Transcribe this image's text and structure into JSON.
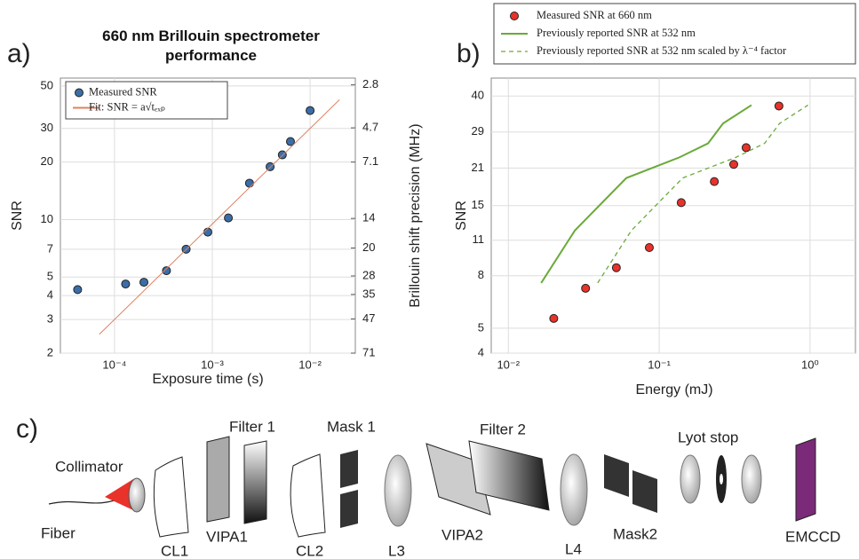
{
  "chart_data": [
    {
      "type": "scatter",
      "panel_label": "a)",
      "title": "660 nm Brillouin spectrometer performance",
      "x_label": "Exposure time  (s)",
      "y_label": "SNR",
      "y2_label": "Brillouin shift precision (MHz)",
      "xlog": true,
      "ylog": true,
      "y2log": true,
      "grid": true,
      "legend": "upper left",
      "xlim": [
        2.8e-05,
        0.029
      ],
      "ylim": [
        2,
        55
      ],
      "y2lim": [
        71,
        2.58
      ],
      "xticks": [
        {
          "value": 0.0001,
          "label": "10⁻⁴"
        },
        {
          "value": 0.001,
          "label": "10⁻³"
        },
        {
          "value": 0.01,
          "label": "10⁻²"
        }
      ],
      "yticks": [
        2,
        3,
        4,
        5,
        7,
        10,
        20,
        30,
        50
      ],
      "y2ticks": [
        2.8,
        4.7,
        7.1,
        14,
        20,
        28,
        35,
        47,
        71
      ],
      "series": [
        {
          "name": "Measured SNR",
          "type": "scatter",
          "color": "#3b6ea8",
          "x": [
            4.2e-05,
            0.00013,
            0.0002,
            0.00034,
            0.00054,
            0.0009,
            0.00146,
            0.0024,
            0.0039,
            0.0052,
            0.0063,
            0.01
          ],
          "values": [
            4.3,
            4.6,
            4.7,
            5.4,
            7.0,
            8.6,
            10.2,
            15.5,
            18.9,
            21.8,
            25.6,
            37.2
          ]
        },
        {
          "name": "Fit: SNR = a√tₑₓₚ",
          "type": "line",
          "color": "#e0805e",
          "x": [
            7e-05,
            0.02
          ],
          "values": [
            2.51,
            42.4
          ]
        }
      ]
    },
    {
      "type": "scatter",
      "panel_label": "b)",
      "x_label": "Energy (mJ)",
      "y_label": "SNR",
      "xlog": true,
      "ylog": true,
      "grid": true,
      "legend": "above",
      "xlim": [
        0.0077,
        2.0
      ],
      "ylim": [
        4,
        47
      ],
      "xticks": [
        {
          "value": 0.01,
          "label": "10⁻²"
        },
        {
          "value": 0.1,
          "label": "10⁻¹"
        },
        {
          "value": 1,
          "label": "10⁰"
        }
      ],
      "yticks": [
        4,
        5,
        8,
        11,
        15,
        21,
        29,
        40
      ],
      "series": [
        {
          "name": "Measured SNR at 660 nm",
          "type": "scatter",
          "color": "#e8322a",
          "x": [
            0.02,
            0.0325,
            0.052,
            0.086,
            0.14,
            0.232,
            0.312,
            0.377,
            0.622
          ],
          "values": [
            5.46,
            7.15,
            8.6,
            10.3,
            15.4,
            18.6,
            21.7,
            25.2,
            36.6
          ]
        },
        {
          "name": "Previously reported SNR at 532 nm",
          "type": "line",
          "color": "#6aaa3a",
          "x": [
            0.0165,
            0.0276,
            0.0605,
            0.136,
            0.211,
            0.265,
            0.409
          ],
          "values": [
            7.5,
            12.0,
            19.2,
            23.1,
            26.2,
            31.3,
            36.9
          ]
        },
        {
          "name": "Previously reported SNR at 532 nm scaled by λ⁻⁴ factor",
          "type": "line",
          "dash": true,
          "color": "#6aaa3a",
          "x": [
            0.0391,
            0.0654,
            0.143,
            0.322,
            0.5,
            0.628,
            0.969
          ],
          "values": [
            7.5,
            12.0,
            19.2,
            23.1,
            26.2,
            31.3,
            36.9
          ]
        }
      ]
    }
  ],
  "diagram": {
    "panel_label": "c)",
    "labels": {
      "collimator": "Collimator",
      "fiber": "Fiber",
      "cl1": "CL1",
      "vipa1": "VIPA1",
      "filter1": "Filter 1",
      "mask1": "Mask 1",
      "cl2": "CL2",
      "l3": "L3",
      "vipa2": "VIPA2",
      "filter2": "Filter 2",
      "l4": "L4",
      "mask2": "Mask2",
      "lyot": "Lyot stop",
      "emccd": "EMCCD"
    }
  }
}
